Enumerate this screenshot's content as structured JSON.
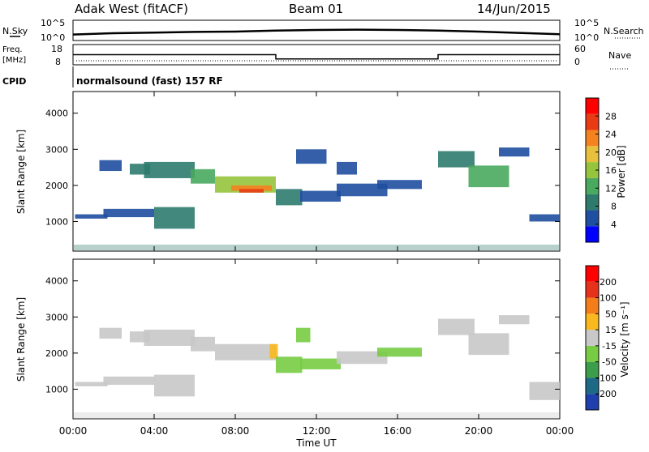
{
  "header": {
    "radar": "Adak West (fitACF)",
    "beam": "Beam 01",
    "date": "14/Jun/2015"
  },
  "panels": {
    "nsky": {
      "label": "N.Sky",
      "top_tick": "10^5",
      "bottom_tick": "10^0",
      "right_label": "N.Search",
      "right_top_tick": "10^5",
      "right_bottom_tick": "10^0"
    },
    "freq": {
      "label_line1": "Freq.",
      "label_line2": "[MHz]",
      "tick_top": "18",
      "tick_bottom": "8",
      "right_label": "Nave",
      "right_tick_top": "60",
      "right_tick_bottom": "0"
    },
    "cpid": {
      "label": "CPID",
      "text": "normalsound (fast) 157 RF"
    }
  },
  "chart_data": [
    {
      "type": "line",
      "name": "nsky",
      "x": [
        0,
        2,
        4,
        6,
        8,
        10,
        12,
        14,
        16,
        18,
        20,
        22,
        24
      ],
      "y": [
        1.1,
        1.5,
        1.7,
        1.9,
        2.0,
        2.3,
        2.5,
        2.6,
        2.5,
        2.3,
        2.0,
        1.6,
        1.2
      ]
    },
    {
      "type": "line",
      "name": "freq",
      "x": [
        0,
        10,
        10,
        18,
        18,
        24
      ],
      "y": [
        13,
        13,
        10.5,
        10.5,
        13,
        13
      ],
      "ylim": [
        8,
        18
      ]
    },
    {
      "type": "heatmap",
      "name": "power",
      "xlabel": "Time UT",
      "ylabel": "Slant Range [km]",
      "xlim": [
        0,
        24
      ],
      "ylim": [
        180,
        4600
      ],
      "xticks": [
        "00:00",
        "04:00",
        "08:00",
        "12:00",
        "16:00",
        "20:00",
        "00:00"
      ],
      "yticks": [
        1000,
        2000,
        3000,
        4000
      ],
      "colorbar": {
        "label": "Power [dB]",
        "ticks": [
          "4",
          "8",
          "12",
          "16",
          "20",
          "24",
          "28"
        ],
        "colors": [
          "#0000ff",
          "#1f4fa0",
          "#2e7b6e",
          "#49a95e",
          "#96c43c",
          "#e7c13d",
          "#f4821f",
          "#e93b14",
          "#ff0000"
        ]
      },
      "regions": [
        {
          "x0": 0.1,
          "x1": 1.7,
          "y0": 1080,
          "y1": 1200,
          "level": 1
        },
        {
          "x0": 1.5,
          "x1": 4.0,
          "y0": 1120,
          "y1": 1350,
          "level": 1
        },
        {
          "x0": 4.0,
          "x1": 6.0,
          "y0": 800,
          "y1": 1400,
          "level": 2
        },
        {
          "x0": 1.3,
          "x1": 2.4,
          "y0": 2400,
          "y1": 2700,
          "level": 1
        },
        {
          "x0": 2.8,
          "x1": 3.8,
          "y0": 2300,
          "y1": 2600,
          "level": 2
        },
        {
          "x0": 3.5,
          "x1": 6.0,
          "y0": 2200,
          "y1": 2650,
          "level": 2
        },
        {
          "x0": 5.8,
          "x1": 7.0,
          "y0": 2050,
          "y1": 2450,
          "level": 3
        },
        {
          "x0": 7.0,
          "x1": 10.0,
          "y0": 1800,
          "y1": 2250,
          "level": 4
        },
        {
          "x0": 7.8,
          "x1": 9.8,
          "y0": 1850,
          "y1": 2000,
          "level": 6
        },
        {
          "x0": 8.2,
          "x1": 9.4,
          "y0": 1800,
          "y1": 1900,
          "level": 7
        },
        {
          "x0": 10.0,
          "x1": 11.3,
          "y0": 1450,
          "y1": 1900,
          "level": 2
        },
        {
          "x0": 11.2,
          "x1": 13.2,
          "y0": 1550,
          "y1": 1850,
          "level": 1
        },
        {
          "x0": 13.0,
          "x1": 15.5,
          "y0": 1700,
          "y1": 2050,
          "level": 1
        },
        {
          "x0": 15.0,
          "x1": 17.2,
          "y0": 1900,
          "y1": 2150,
          "level": 1
        },
        {
          "x0": 13.0,
          "x1": 14.0,
          "y0": 2300,
          "y1": 2650,
          "level": 1
        },
        {
          "x0": 18.0,
          "x1": 19.8,
          "y0": 2500,
          "y1": 2950,
          "level": 2
        },
        {
          "x0": 19.5,
          "x1": 21.5,
          "y0": 1950,
          "y1": 2550,
          "level": 3
        },
        {
          "x0": 21.0,
          "x1": 22.5,
          "y0": 2800,
          "y1": 3050,
          "level": 1
        },
        {
          "x0": 11.0,
          "x1": 12.5,
          "y0": 2600,
          "y1": 3000,
          "level": 1
        },
        {
          "x0": 22.5,
          "x1": 24.0,
          "y0": 1000,
          "y1": 1200,
          "level": 1
        }
      ]
    },
    {
      "type": "heatmap",
      "name": "velocity",
      "xlabel": "Time UT",
      "ylabel": "Slant Range [km]",
      "xlim": [
        0,
        24
      ],
      "ylim": [
        180,
        4600
      ],
      "xticks": [
        "00:00",
        "04:00",
        "08:00",
        "12:00",
        "16:00",
        "20:00",
        "00:00"
      ],
      "yticks": [
        1000,
        2000,
        3000,
        4000
      ],
      "colorbar": {
        "label": "Velocity [m s⁻¹]",
        "ticks": [
          "200",
          "100",
          "50",
          "15",
          "-15",
          "-50",
          "-100",
          "-200"
        ],
        "colors": [
          "#1f3fae",
          "#1e6a86",
          "#3c9e4a",
          "#77cc44",
          "#c8c8c8",
          "#f9b81d",
          "#f47d1a",
          "#e6321a",
          "#ff0000"
        ]
      },
      "regions": [
        {
          "x0": 0.1,
          "x1": 1.7,
          "y0": 1080,
          "y1": 1200,
          "v": "neutral"
        },
        {
          "x0": 1.5,
          "x1": 4.0,
          "y0": 1120,
          "y1": 1350,
          "v": "neutral"
        },
        {
          "x0": 4.0,
          "x1": 6.0,
          "y0": 800,
          "y1": 1400,
          "v": "neutral"
        },
        {
          "x0": 1.3,
          "x1": 2.4,
          "y0": 2400,
          "y1": 2700,
          "v": "neutral"
        },
        {
          "x0": 2.8,
          "x1": 3.8,
          "y0": 2300,
          "y1": 2600,
          "v": "neutral"
        },
        {
          "x0": 3.5,
          "x1": 6.0,
          "y0": 2200,
          "y1": 2650,
          "v": "neutral"
        },
        {
          "x0": 5.8,
          "x1": 7.0,
          "y0": 2050,
          "y1": 2450,
          "v": "neutral"
        },
        {
          "x0": 7.0,
          "x1": 10.0,
          "y0": 1800,
          "y1": 2250,
          "v": "neutral"
        },
        {
          "x0": 9.7,
          "x1": 10.1,
          "y0": 1850,
          "y1": 2250,
          "v": "away"
        },
        {
          "x0": 10.0,
          "x1": 11.3,
          "y0": 1450,
          "y1": 1900,
          "v": "toward"
        },
        {
          "x0": 11.2,
          "x1": 13.2,
          "y0": 1550,
          "y1": 1850,
          "v": "toward"
        },
        {
          "x0": 13.0,
          "x1": 15.5,
          "y0": 1700,
          "y1": 2050,
          "v": "neutral"
        },
        {
          "x0": 15.0,
          "x1": 17.2,
          "y0": 1900,
          "y1": 2150,
          "v": "toward"
        },
        {
          "x0": 11.0,
          "x1": 11.7,
          "y0": 2300,
          "y1": 2700,
          "v": "toward"
        },
        {
          "x0": 18.0,
          "x1": 19.8,
          "y0": 2500,
          "y1": 2950,
          "v": "neutral"
        },
        {
          "x0": 19.5,
          "x1": 21.5,
          "y0": 1950,
          "y1": 2550,
          "v": "neutral"
        },
        {
          "x0": 21.0,
          "x1": 22.5,
          "y0": 2800,
          "y1": 3050,
          "v": "neutral"
        },
        {
          "x0": 22.5,
          "x1": 24.0,
          "y0": 700,
          "y1": 1200,
          "v": "neutral"
        }
      ]
    }
  ]
}
